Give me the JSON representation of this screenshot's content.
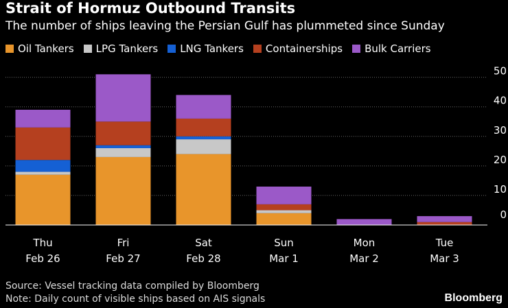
{
  "title": "Strait of Hormuz Outbound Transits",
  "subtitle": "The number of ships leaving the Persian Gulf has plummeted since Sunday",
  "source": "Source: Vessel tracking data compiled by Bloomberg",
  "note": "Note: Daily count of visible ships based on AIS signals",
  "brand": "Bloomberg",
  "colors": {
    "Oil Tankers": "#e8952b",
    "LPG Tankers": "#c8c8c8",
    "LNG Tankers": "#1560d4",
    "Containerships": "#b5401f",
    "Bulk Carriers": "#9b59c8"
  },
  "chart_data": {
    "type": "bar",
    "stacked": true,
    "title": "Strait of Hormuz Outbound Transits",
    "categories": [
      "Thu\nFeb 26",
      "Fri\nFeb 27",
      "Sat\nFeb 28",
      "Sun\nMar 1",
      "Mon\nMar 2",
      "Tue\nMar 3"
    ],
    "series": [
      {
        "name": "Oil Tankers",
        "values": [
          17,
          23,
          24,
          4,
          0,
          0
        ]
      },
      {
        "name": "LPG Tankers",
        "values": [
          1,
          3,
          5,
          1,
          0,
          0
        ]
      },
      {
        "name": "LNG Tankers",
        "values": [
          4,
          1,
          1,
          0,
          0,
          0
        ]
      },
      {
        "name": "Containerships",
        "values": [
          11,
          8,
          6,
          2,
          0,
          1
        ]
      },
      {
        "name": "Bulk Carriers",
        "values": [
          6,
          16,
          8,
          6,
          2,
          2
        ]
      }
    ],
    "yticks": [
      0,
      10,
      20,
      30,
      40,
      50
    ],
    "ylim": [
      0,
      52
    ],
    "grid": true,
    "legend": "top-left",
    "xlabel": "",
    "ylabel": ""
  }
}
